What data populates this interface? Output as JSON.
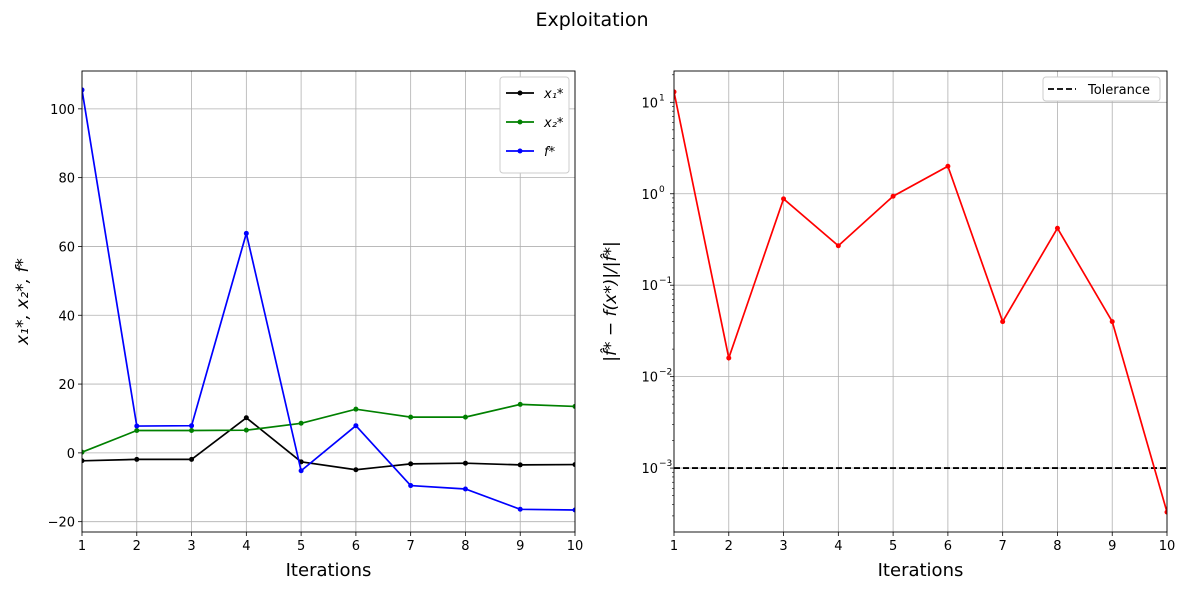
{
  "figure": {
    "title": "Exploitation"
  },
  "chart_data": [
    {
      "type": "line",
      "xlabel": "Iterations",
      "ylabel": "x₁*, x₂*, f*",
      "xlim": [
        1,
        10
      ],
      "ylim": [
        -23,
        111
      ],
      "grid": true,
      "legend_position": "top-right",
      "x": [
        1,
        2,
        3,
        4,
        5,
        6,
        7,
        8,
        9,
        10
      ],
      "x_ticks": [
        "1",
        "2",
        "3",
        "4",
        "5",
        "6",
        "7",
        "8",
        "9",
        "10"
      ],
      "y_ticks": [
        -20,
        0,
        20,
        40,
        60,
        80,
        100
      ],
      "y_tick_labels": [
        "−20",
        "0",
        "20",
        "40",
        "60",
        "80",
        "100"
      ],
      "series": [
        {
          "name": "x₁*",
          "color": "#000000",
          "values": [
            -2.3,
            -1.9,
            -1.9,
            10.2,
            -2.6,
            -4.9,
            -3.2,
            -3.0,
            -3.5,
            -3.4
          ]
        },
        {
          "name": "x₂*",
          "color": "#008000",
          "values": [
            0.2,
            6.5,
            6.5,
            6.6,
            8.6,
            12.7,
            10.4,
            10.4,
            14.1,
            13.5
          ]
        },
        {
          "name": "f*",
          "color": "#0000ff",
          "values": [
            105.5,
            7.8,
            7.9,
            63.8,
            -5.2,
            7.9,
            -9.5,
            -10.5,
            -16.4,
            -16.6
          ]
        }
      ]
    },
    {
      "type": "line",
      "xlabel": "Iterations",
      "ylabel": "|f̂* − f(x*)|/|f̂*|",
      "xlim": [
        1,
        10
      ],
      "ylim": [
        0.0002,
        22
      ],
      "yscale": "log",
      "grid": true,
      "legend_position": "top-right",
      "x": [
        1,
        2,
        3,
        4,
        5,
        6,
        7,
        8,
        9,
        10
      ],
      "x_ticks": [
        "1",
        "2",
        "3",
        "4",
        "5",
        "6",
        "7",
        "8",
        "9",
        "10"
      ],
      "y_ticks": [
        0.001,
        0.01,
        0.1,
        1,
        10
      ],
      "y_tick_labels": [
        "10",
        "10",
        "10",
        "10",
        "10"
      ],
      "y_tick_exponents": [
        "−3",
        "−2",
        "−1",
        "0",
        "1"
      ],
      "series": [
        {
          "name": "",
          "color": "#ff0000",
          "values": [
            13.0,
            0.016,
            0.88,
            0.27,
            0.94,
            2.0,
            0.04,
            0.42,
            0.04,
            0.00033
          ]
        }
      ],
      "reference_line": {
        "label": "Tolerance",
        "value": 0.001,
        "color": "#000000",
        "style": "dashed"
      }
    }
  ]
}
